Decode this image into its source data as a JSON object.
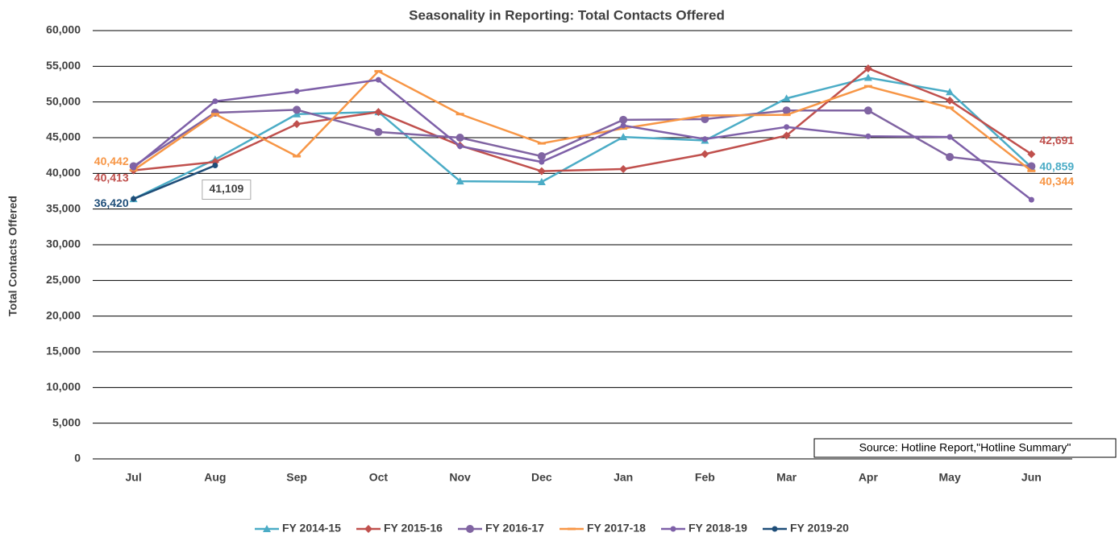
{
  "chart_data": {
    "type": "line",
    "title": "Seasonality in Reporting: Total Contacts Offered",
    "y_label": "Total Contacts Offered",
    "annotation": "Source: Hotline Report,\"Hotline Summary\"",
    "categories": [
      "Jul",
      "Aug",
      "Sep",
      "Oct",
      "Nov",
      "Dec",
      "Jan",
      "Feb",
      "Mar",
      "Apr",
      "May",
      "Jun"
    ],
    "ylim": [
      0,
      60000
    ],
    "yticks": [
      0,
      {
        "value": 5000,
        "label": "5,000"
      },
      {
        "value": 10000,
        "label": "10,000"
      },
      {
        "value": 15000,
        "label": "15,000"
      },
      {
        "value": 20000,
        "label": "20,000"
      },
      {
        "value": 25000,
        "label": "25,000"
      },
      {
        "value": 30000,
        "label": "30,000"
      },
      {
        "value": 35000,
        "label": "35,000"
      },
      {
        "value": 40000,
        "label": "40,000"
      },
      {
        "value": 45000,
        "label": "45,000"
      },
      {
        "value": 50000,
        "label": "50,000"
      },
      {
        "value": 55000,
        "label": "55,000"
      },
      {
        "value": 60000,
        "label": "60,000"
      }
    ],
    "grid": true,
    "legend": "bottom",
    "series": [
      {
        "name": "FY 2014-15",
        "color": "#4bacc6",
        "marker": "triangle",
        "values": [
          36420,
          41950,
          48300,
          48600,
          38900,
          38800,
          45100,
          44600,
          50500,
          53400,
          51400,
          40859
        ],
        "value_labels": [
          null,
          null,
          null,
          null,
          null,
          null,
          null,
          null,
          null,
          null,
          null,
          "40,859"
        ]
      },
      {
        "name": "FY 2015-16",
        "color": "#c0504d",
        "marker": "diamond",
        "values": [
          40413,
          41600,
          46900,
          48600,
          43900,
          40300,
          40600,
          42700,
          45300,
          54700,
          50200,
          42691
        ],
        "value_labels": [
          "40,413",
          null,
          null,
          null,
          null,
          null,
          null,
          null,
          null,
          null,
          null,
          "42,691"
        ]
      },
      {
        "name": "FY 2016-17",
        "color": "#8064a2",
        "marker": "circle",
        "values": [
          41000,
          48500,
          48900,
          45800,
          45000,
          42400,
          47500,
          47600,
          48800,
          48800,
          42300,
          41000
        ]
      },
      {
        "name": "FY 2017-18",
        "color": "#f79646",
        "marker": "dash",
        "values": [
          40442,
          48300,
          42400,
          54300,
          48300,
          44200,
          46300,
          48100,
          48200,
          52200,
          49200,
          40344
        ],
        "value_labels": [
          "40,442",
          null,
          null,
          null,
          null,
          null,
          null,
          null,
          null,
          null,
          null,
          "40,344"
        ]
      },
      {
        "name": "FY 2018-19",
        "color": "#7e60a8",
        "marker": "small-circle",
        "values": [
          40800,
          50100,
          51500,
          53100,
          43800,
          41600,
          46700,
          44800,
          46500,
          45200,
          45100,
          36300
        ]
      },
      {
        "name": "FY 2019-20",
        "color": "#1f4e79",
        "marker": "small-circle",
        "values": [
          36420,
          41109,
          null,
          null,
          null,
          null,
          null,
          null,
          null,
          null,
          null,
          null
        ],
        "value_labels": [
          "36,420",
          "41,109",
          null,
          null,
          null,
          null,
          null,
          null,
          null,
          null,
          null,
          null
        ]
      }
    ]
  }
}
